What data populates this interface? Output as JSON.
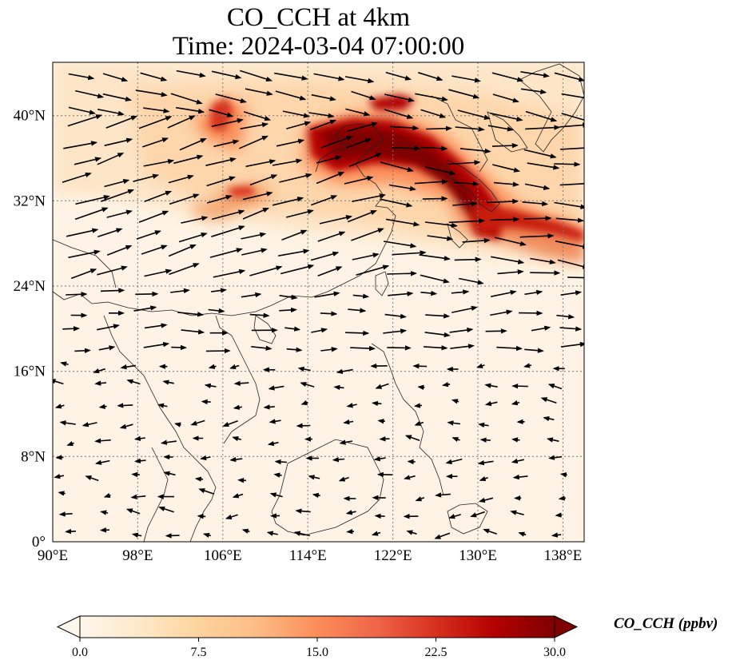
{
  "title_line1": "CO_CCH at 4km",
  "title_line2": "Time: 2024-03-04 07:00:00",
  "map": {
    "lon_range": [
      90,
      140
    ],
    "lat_range": [
      0,
      45
    ],
    "lon_ticks": [
      90,
      98,
      106,
      114,
      122,
      130,
      138
    ],
    "lon_tick_labels": [
      "90°E",
      "98°E",
      "106°E",
      "114°E",
      "122°E",
      "130°E",
      "138°E"
    ],
    "lat_ticks": [
      0,
      8,
      16,
      24,
      32,
      40
    ],
    "lat_tick_labels": [
      "0°",
      "8°N",
      "16°N",
      "24°N",
      "32°N",
      "40°N"
    ],
    "gridlines": true,
    "overlay": "wind vectors",
    "plume_color_scale": "OrRd"
  },
  "colorbar": {
    "label": "CO_CCH (ppbv)",
    "min": 0.0,
    "max": 30.0,
    "ticks": [
      "0.0",
      "7.5",
      "15.0",
      "22.5",
      "30.0"
    ],
    "colors": [
      "#fff7ec",
      "#fee8c8",
      "#fdd49e",
      "#fdbb84",
      "#fc8d59",
      "#ef6548",
      "#d7301f",
      "#b30000",
      "#7f0000"
    ],
    "extend": "both"
  }
}
